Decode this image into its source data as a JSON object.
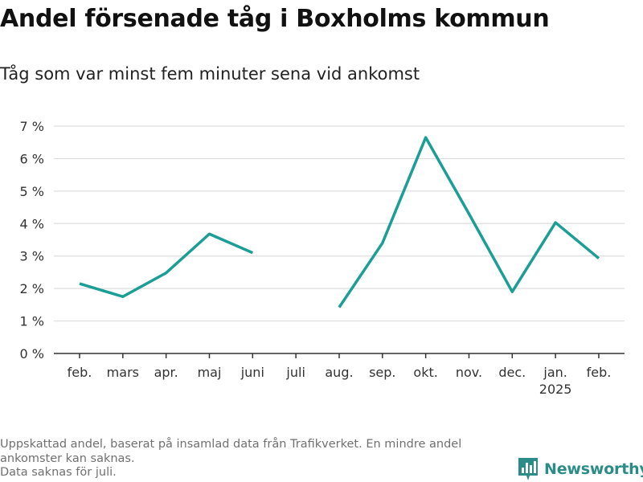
{
  "header": {
    "title": "Andel försenade tåg i Boxholms kommun",
    "subtitle": "Tåg som var minst fem minuter sena vid ankomst"
  },
  "footer": {
    "notes": [
      "Uppskattad andel, baserat på insamlad data från Trafikverket. En mindre andel ankomster kan saknas.",
      "Data saknas för juli."
    ],
    "brand": "Newsworthy",
    "brand_icon": "bar-chart-logo-icon"
  },
  "colors": {
    "line": "#1a9e96",
    "grid": "#dddddd",
    "axis": "#333333",
    "brand": "#2b8c88"
  },
  "chart_data": {
    "type": "line",
    "categories": [
      [
        "feb."
      ],
      [
        "mars"
      ],
      [
        "apr."
      ],
      [
        "maj"
      ],
      [
        "juni"
      ],
      [
        "juli"
      ],
      [
        "aug."
      ],
      [
        "sep."
      ],
      [
        "okt."
      ],
      [
        "nov."
      ],
      [
        "dec."
      ],
      [
        "jan.",
        "2025"
      ],
      [
        "feb."
      ]
    ],
    "series": [
      {
        "values": [
          2.15,
          1.75,
          2.48,
          3.68,
          3.1,
          null,
          1.42,
          3.4,
          6.65,
          4.3,
          1.9,
          4.03,
          2.93
        ]
      }
    ],
    "ylim": [
      0,
      7
    ],
    "yticks": [
      0,
      1,
      2,
      3,
      4,
      5,
      6,
      7
    ],
    "ytick_suffix": " %",
    "grid": true,
    "legend": "none"
  }
}
